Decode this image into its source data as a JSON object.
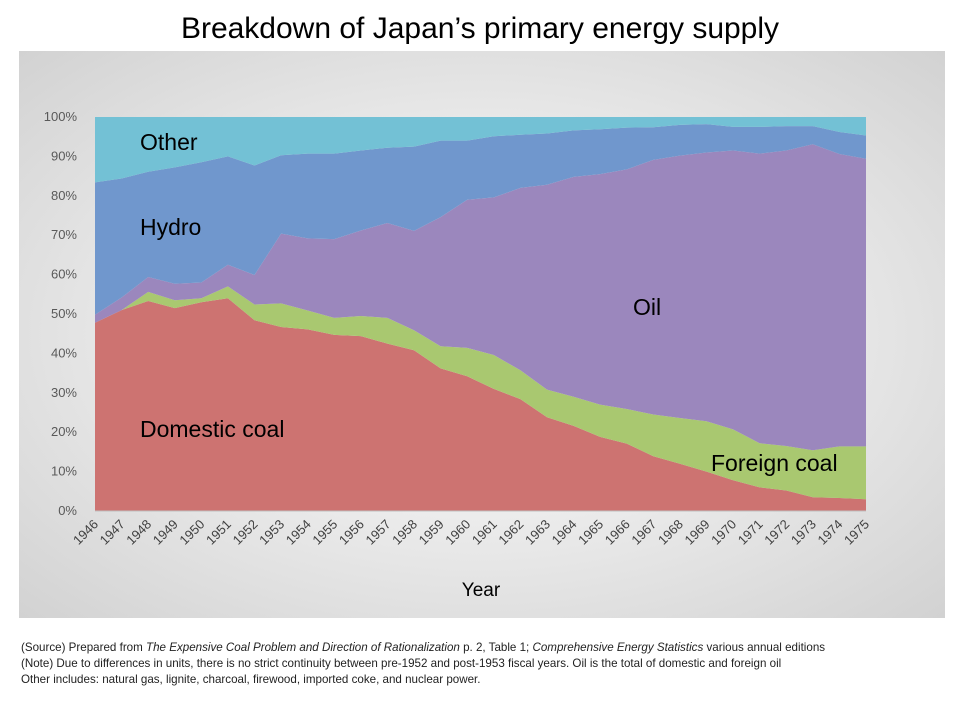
{
  "chart_data": {
    "type": "area",
    "stacked": true,
    "normalized_percent": true,
    "title": "Breakdown of Japan’s primary energy supply",
    "xlabel": "Year",
    "ylabel": "",
    "ylim": [
      0,
      100
    ],
    "yticks": [
      "0%",
      "10%",
      "20%",
      "30%",
      "40%",
      "50%",
      "60%",
      "70%",
      "80%",
      "90%",
      "100%"
    ],
    "grid": false,
    "legend": "inline labels",
    "categories": [
      "1946",
      "1947",
      "1948",
      "1949",
      "1950",
      "1951",
      "1952",
      "1953",
      "1954",
      "1955",
      "1956",
      "1957",
      "1958",
      "1959",
      "1960",
      "1961",
      "1962",
      "1963",
      "1964",
      "1965",
      "1966",
      "1967",
      "1968",
      "1969",
      "1970",
      "1971",
      "1972",
      "1973",
      "1974",
      "1975"
    ],
    "series": [
      {
        "name": "Domestic coal",
        "color": "#cd7371",
        "values": [
          47.8,
          51.0,
          53.3,
          51.5,
          53.0,
          54.0,
          48.4,
          46.7,
          46.1,
          44.7,
          44.4,
          42.5,
          40.8,
          36.2,
          34.2,
          31.0,
          28.4,
          23.8,
          21.6,
          18.8,
          17.1,
          13.9,
          12.0,
          10.0,
          7.8,
          6.0,
          5.2,
          3.5,
          3.3,
          3.0
        ]
      },
      {
        "name": "Foreign coal",
        "color": "#a9c870",
        "values": [
          0.0,
          0.0,
          2.3,
          2.0,
          1.0,
          3.0,
          4.0,
          6.0,
          4.8,
          4.3,
          5.1,
          6.5,
          5.1,
          5.6,
          7.2,
          8.6,
          7.3,
          7.0,
          7.4,
          8.2,
          8.8,
          10.6,
          11.6,
          12.8,
          12.9,
          11.2,
          11.3,
          11.9,
          13.1,
          13.4
        ]
      },
      {
        "name": "Oil",
        "color": "#9b87bd",
        "values": [
          2.0,
          3.2,
          3.8,
          4.2,
          4.0,
          5.5,
          7.5,
          17.7,
          18.3,
          20.0,
          21.7,
          24.1,
          25.2,
          32.8,
          37.6,
          40.0,
          46.3,
          52.0,
          55.8,
          58.5,
          60.8,
          64.6,
          66.6,
          68.2,
          70.8,
          73.5,
          75.0,
          77.7,
          74.2,
          73.0
        ]
      },
      {
        "name": "Hydro",
        "color": "#7097cd",
        "values": [
          33.6,
          30.2,
          26.7,
          29.5,
          30.5,
          27.5,
          27.8,
          19.9,
          21.5,
          21.7,
          20.3,
          19.1,
          21.4,
          19.4,
          15.0,
          15.5,
          13.5,
          13.0,
          11.8,
          11.4,
          10.6,
          8.3,
          7.8,
          7.2,
          6.0,
          6.8,
          6.2,
          4.6,
          5.6,
          5.9
        ]
      },
      {
        "name": "Other",
        "color": "#73c1d5",
        "values": [
          16.6,
          15.6,
          13.9,
          12.8,
          11.5,
          10.0,
          12.3,
          9.7,
          9.3,
          9.3,
          8.5,
          7.8,
          7.5,
          6.0,
          6.0,
          4.9,
          4.5,
          4.2,
          3.4,
          3.1,
          2.7,
          2.6,
          2.0,
          1.8,
          2.5,
          2.5,
          2.3,
          2.3,
          3.8,
          4.7
        ]
      }
    ],
    "series_labels": [
      "Other",
      "Hydro",
      "Oil",
      "Domestic coal",
      "Foreign coal"
    ]
  },
  "notes": {
    "line1_prefix": "(Source) Prepared from ",
    "line1_title1": "The Expensive Coal Problem and Direction of Rationalization",
    "line1_mid": " p. 2, Table 1; ",
    "line1_title2": "Comprehensive Energy Statistics",
    "line1_suffix": " various annual editions",
    "line2": "(Note) Due to differences in units, there is no strict continuity between pre-1952 and post-1953 fiscal years. Oil is the total of domestic and foreign oil",
    "line3": "Other includes: natural gas, lignite, charcoal, firewood, imported coke, and nuclear power."
  }
}
